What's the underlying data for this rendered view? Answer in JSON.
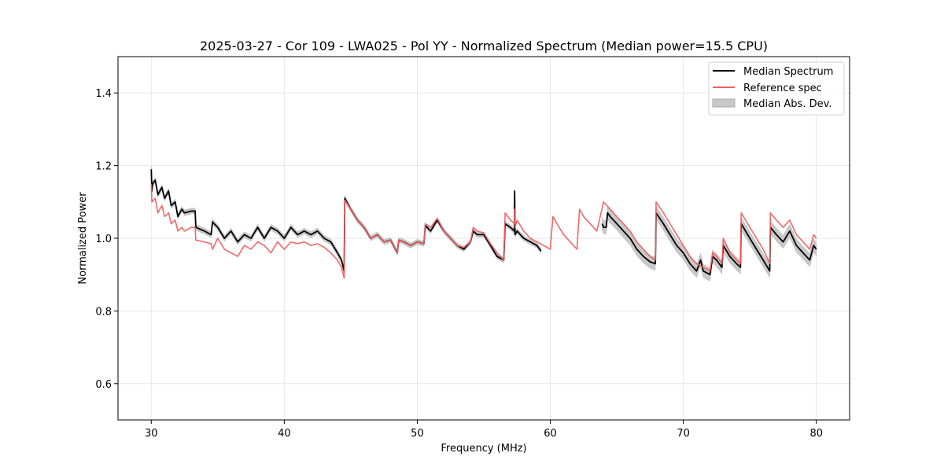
{
  "chart_data": {
    "type": "line",
    "title": "2025-03-27 - Cor 109 - LWA025 - Pol YY - Normalized Spectrum (Median power=15.5 CPU)",
    "xlabel": "Frequency (MHz)",
    "ylabel": "Normalized Power",
    "xlim": [
      27.5,
      82.5
    ],
    "ylim": [
      0.5,
      1.5
    ],
    "xticks": [
      30,
      40,
      50,
      60,
      70,
      80
    ],
    "xtick_labels": [
      "30",
      "40",
      "50",
      "60",
      "70",
      "80"
    ],
    "yticks": [
      0.6,
      0.8,
      1.0,
      1.2,
      1.4
    ],
    "ytick_labels": [
      "0.6",
      "0.8",
      "1.0",
      "1.2",
      "1.4"
    ],
    "grid": true,
    "legend_position": "top-right",
    "legend": [
      "Median Spectrum",
      "Reference spec",
      "Median Abs. Dev."
    ],
    "colors": {
      "median": "#000000",
      "reference": "#f06060",
      "mad": "#b0b0b0",
      "grid": "#e6e6e6"
    },
    "series": [
      {
        "name": "Median Spectrum",
        "segments": [
          {
            "x": [
              30.0,
              30.05,
              30.1,
              30.3,
              30.5,
              30.8,
              31.0,
              31.3,
              31.5,
              31.8,
              32.0,
              32.3,
              32.5,
              33.0,
              33.3,
              33.35,
              34.0,
              34.5,
              34.6,
              35.0,
              35.5,
              36.0,
              36.5,
              37.0,
              37.5,
              38.0,
              38.5,
              39.0,
              39.5,
              40.0,
              40.5,
              41.0,
              41.5,
              42.0,
              42.5,
              43.0,
              43.5,
              44.0,
              44.3,
              44.5,
              44.55,
              45.0,
              45.5,
              46.0,
              46.5,
              47.0,
              47.5,
              48.0,
              48.5,
              48.6,
              49.0,
              49.5,
              50.0,
              50.5,
              50.6,
              51.0,
              51.5,
              52.0,
              52.5,
              53.0,
              53.5,
              54.0,
              54.2,
              54.5,
              55.0,
              55.5,
              56.0,
              56.5,
              56.6,
              57.0,
              57.3,
              57.32,
              57.35,
              57.5,
              58.0,
              58.5,
              59.0,
              59.3
            ],
            "y": [
              1.19,
              1.13,
              1.15,
              1.16,
              1.12,
              1.14,
              1.11,
              1.13,
              1.09,
              1.1,
              1.06,
              1.08,
              1.07,
              1.075,
              1.075,
              1.03,
              1.02,
              1.01,
              1.045,
              1.03,
              1.0,
              1.02,
              0.99,
              1.01,
              1.0,
              1.03,
              1.0,
              1.03,
              1.02,
              1.0,
              1.03,
              1.01,
              1.02,
              1.01,
              1.02,
              1.0,
              0.99,
              0.96,
              0.94,
              0.91,
              1.11,
              1.08,
              1.05,
              1.03,
              1.0,
              1.01,
              0.99,
              0.995,
              0.96,
              0.995,
              0.99,
              0.98,
              0.99,
              0.985,
              1.035,
              1.02,
              1.05,
              1.02,
              1.0,
              0.98,
              0.97,
              0.99,
              1.02,
              1.01,
              1.01,
              0.98,
              0.95,
              0.94,
              1.04,
              1.03,
              1.02,
              1.13,
              1.01,
              1.02,
              1.0,
              0.99,
              0.98,
              0.965
            ]
          },
          {
            "x": [
              63.9,
              64.0,
              64.2,
              64.3,
              64.5,
              65.0,
              65.5,
              66.0,
              66.5,
              67.0,
              67.5,
              67.9,
              67.95,
              68.5,
              69.0,
              69.5,
              70.0,
              70.5,
              71.0,
              71.3,
              71.5,
              72.0,
              72.2,
              72.5,
              72.9,
              73.0,
              73.5,
              74.0,
              74.3,
              74.35,
              75.0,
              75.5,
              76.0,
              76.5,
              76.55,
              77.0,
              77.5,
              78.0,
              78.5,
              79.0,
              79.5,
              79.8,
              80.0
            ],
            "y": [
              1.04,
              1.03,
              1.03,
              1.07,
              1.06,
              1.04,
              1.02,
              1.0,
              0.97,
              0.95,
              0.935,
              0.93,
              1.07,
              1.04,
              1.01,
              0.98,
              0.96,
              0.93,
              0.91,
              0.94,
              0.91,
              0.9,
              0.95,
              0.94,
              0.92,
              0.98,
              0.95,
              0.93,
              0.92,
              1.04,
              1.0,
              0.97,
              0.94,
              0.91,
              1.03,
              1.01,
              0.99,
              1.02,
              0.98,
              0.96,
              0.94,
              0.98,
              0.97
            ]
          }
        ]
      },
      {
        "name": "Reference spec",
        "segments": [
          {
            "x": [
              30.0,
              30.05,
              30.3,
              30.5,
              30.8,
              31.0,
              31.3,
              31.5,
              31.8,
              32.0,
              32.3,
              32.5,
              33.0,
              33.3,
              33.35,
              34.0,
              34.5,
              34.6,
              35.0,
              35.5,
              36.0,
              36.5,
              37.0,
              37.5,
              38.0,
              38.5,
              39.0,
              39.5,
              40.0,
              40.5,
              41.0,
              41.5,
              42.0,
              42.5,
              43.0,
              43.5,
              44.0,
              44.3,
              44.5,
              44.55,
              45.0,
              45.5,
              46.0,
              46.5,
              47.0,
              47.5,
              48.0,
              48.5,
              48.6,
              49.0,
              49.5,
              50.0,
              50.5,
              50.6,
              51.0,
              51.5,
              52.0,
              52.5,
              53.0,
              53.5,
              54.0,
              54.2,
              54.5,
              55.0,
              55.5,
              56.0,
              56.5,
              56.6,
              57.0,
              57.3,
              57.32,
              57.35,
              57.5,
              58.0,
              58.5,
              59.0,
              59.5,
              60.0,
              60.2,
              60.5,
              61.0,
              61.5,
              62.0,
              62.2,
              62.5,
              63.0,
              63.5,
              64.0,
              64.5,
              65.0,
              65.5,
              66.0,
              66.5,
              67.0,
              67.5,
              67.9,
              67.95,
              68.5,
              69.0,
              69.5,
              70.0,
              70.5,
              71.0,
              71.5,
              72.0,
              72.2,
              72.5,
              72.9,
              73.0,
              73.5,
              74.0,
              74.3,
              74.35,
              75.0,
              75.5,
              76.0,
              76.5,
              76.55,
              77.0,
              77.5,
              78.0,
              78.5,
              79.0,
              79.5,
              79.8,
              80.0
            ],
            "y": [
              1.15,
              1.1,
              1.11,
              1.07,
              1.09,
              1.06,
              1.07,
              1.04,
              1.05,
              1.02,
              1.03,
              1.02,
              1.03,
              1.03,
              0.995,
              0.99,
              0.985,
              0.97,
              1.0,
              0.97,
              0.96,
              0.95,
              0.98,
              0.97,
              0.99,
              0.98,
              0.96,
              0.99,
              0.97,
              0.99,
              0.985,
              0.99,
              0.98,
              0.985,
              0.975,
              0.96,
              0.94,
              0.92,
              0.89,
              1.105,
              1.08,
              1.05,
              1.03,
              1.0,
              1.01,
              0.99,
              0.995,
              0.96,
              0.995,
              0.99,
              0.98,
              0.99,
              0.985,
              1.04,
              1.03,
              1.055,
              1.02,
              1.0,
              0.98,
              0.975,
              0.99,
              1.03,
              1.02,
              1.015,
              0.985,
              0.96,
              0.94,
              1.07,
              1.05,
              1.04,
              1.08,
              1.03,
              1.05,
              1.02,
              1.0,
              0.99,
              0.98,
              0.97,
              1.06,
              1.04,
              1.01,
              0.99,
              0.97,
              1.08,
              1.06,
              1.04,
              1.02,
              1.1,
              1.08,
              1.06,
              1.04,
              1.02,
              0.99,
              0.97,
              0.95,
              0.94,
              1.1,
              1.07,
              1.04,
              1.01,
              0.98,
              0.95,
              0.93,
              0.92,
              0.91,
              0.96,
              0.95,
              0.93,
              1.0,
              0.96,
              0.94,
              0.93,
              1.07,
              1.03,
              1.0,
              0.97,
              0.93,
              1.07,
              1.05,
              1.03,
              1.05,
              1.01,
              0.99,
              0.97,
              1.01,
              1.0
            ]
          }
        ]
      }
    ],
    "mad_band": {
      "name": "Median Abs. Dev.",
      "width": [
        {
          "xmin": 30.0,
          "xmax": 44.6,
          "value": 0.008
        },
        {
          "xmin": 44.6,
          "xmax": 59.3,
          "value": 0.007
        },
        {
          "xmin": 63.9,
          "xmax": 80.0,
          "value": 0.018
        }
      ]
    }
  }
}
